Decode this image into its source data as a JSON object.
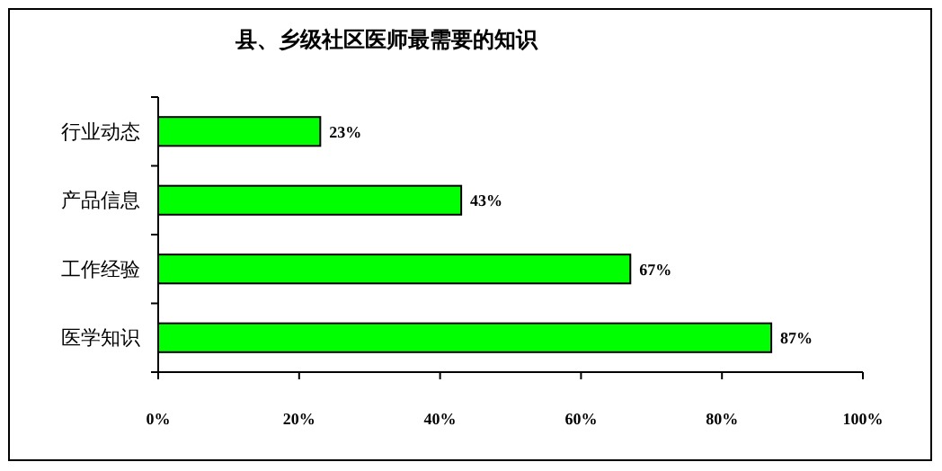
{
  "chart_data": {
    "type": "bar",
    "orientation": "horizontal",
    "title": "县、乡级社区医师最需要的知识",
    "categories": [
      "行业动态",
      "产品信息",
      "工作经验",
      "医学知识"
    ],
    "values": [
      23,
      43,
      67,
      87
    ],
    "color": "#00ff00",
    "value_labels": [
      "23%",
      "43%",
      "67%",
      "87%"
    ],
    "xlim": [
      0,
      100
    ],
    "xticks": [
      {
        "value": 0,
        "label": "0%"
      },
      {
        "value": 20,
        "label": "20%"
      },
      {
        "value": 40,
        "label": "40%"
      },
      {
        "value": 60,
        "label": "60%"
      },
      {
        "value": 80,
        "label": "80%"
      },
      {
        "value": 100,
        "label": "100%"
      }
    ],
    "grid": false
  }
}
